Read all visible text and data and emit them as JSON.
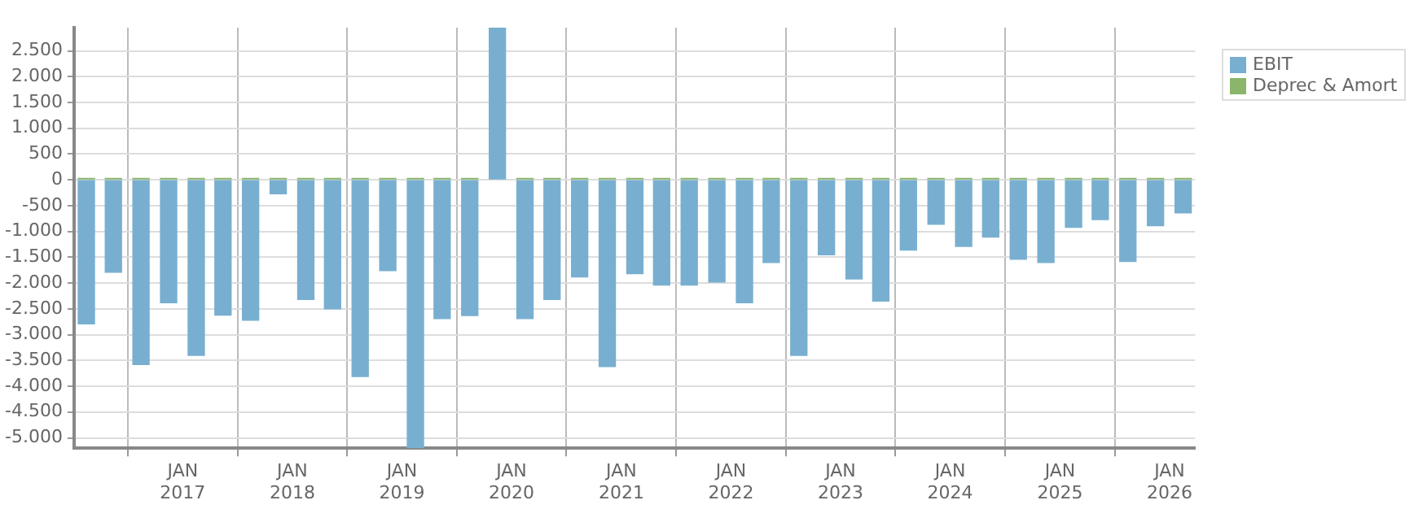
{
  "chart_data": {
    "type": "bar",
    "stacked": true,
    "x": [
      "2016-02-15",
      "2016-05-15",
      "2016-08-15",
      "2016-11-15",
      "2017-02-15",
      "2017-05-15",
      "2017-08-15",
      "2017-11-15",
      "2018-02-15",
      "2018-05-15",
      "2018-08-15",
      "2018-11-15",
      "2019-02-15",
      "2019-05-15",
      "2019-08-15",
      "2019-11-15",
      "2020-02-15",
      "2020-05-15",
      "2020-08-15",
      "2020-11-15",
      "2021-02-15",
      "2021-05-15",
      "2021-08-15",
      "2021-11-15",
      "2022-02-15",
      "2022-05-15",
      "2022-08-15",
      "2022-11-15",
      "2023-02-15",
      "2023-05-15",
      "2023-08-15",
      "2023-11-15",
      "2024-02-15",
      "2024-05-15",
      "2024-08-15",
      "2024-11-15",
      "2025-02-15",
      "2025-05-15",
      "2025-08-15",
      "2025-11-15",
      "2026-02-15"
    ],
    "series": [
      {
        "name": "EBIT",
        "color": "#78afd0",
        "values": [
          -2790,
          -1790,
          -3580,
          -2380,
          -3400,
          -2620,
          -2720,
          -270,
          -2320,
          -2500,
          -3810,
          -1760,
          -5200,
          -2690,
          -2630,
          2950,
          -2690,
          -2320,
          -1880,
          -3620,
          -1820,
          -2040,
          -2040,
          -1980,
          -2380,
          -1600,
          -3400,
          -1450,
          -1920,
          -2350,
          -1360,
          -860,
          -1290,
          -1110,
          -1540,
          -1600,
          -920,
          -770,
          -1580,
          -890,
          -640
        ]
      },
      {
        "name": "Deprec & Amort",
        "color": "#8ab56a",
        "values": [
          30,
          30,
          30,
          30,
          30,
          30,
          30,
          30,
          30,
          30,
          30,
          30,
          30,
          30,
          30,
          null,
          30,
          30,
          30,
          30,
          30,
          30,
          30,
          30,
          30,
          30,
          30,
          30,
          30,
          30,
          30,
          30,
          30,
          30,
          30,
          30,
          30,
          30,
          30,
          30,
          30
        ]
      }
    ],
    "xlim": [
      "2016-01-05",
      "2026-03-27"
    ],
    "xticks": [
      {
        "value": "2017-01-01",
        "label": "JAN 2017"
      },
      {
        "value": "2018-01-01",
        "label": "JAN 2018"
      },
      {
        "value": "2019-01-01",
        "label": "JAN 2019"
      },
      {
        "value": "2020-01-01",
        "label": "JAN 2020"
      },
      {
        "value": "2021-01-01",
        "label": "JAN 2021"
      },
      {
        "value": "2022-01-01",
        "label": "JAN 2022"
      },
      {
        "value": "2023-01-01",
        "label": "JAN 2023"
      },
      {
        "value": "2024-01-01",
        "label": "JAN 2024"
      },
      {
        "value": "2025-01-01",
        "label": "JAN 2025"
      },
      {
        "value": "2026-01-01",
        "label": "JAN 2026"
      }
    ],
    "ylim": [
      -5200,
      2950
    ],
    "yticks": [
      {
        "value": 2500,
        "label": "2.500"
      },
      {
        "value": 2000,
        "label": "2.000"
      },
      {
        "value": 1500,
        "label": "1.500"
      },
      {
        "value": 1000,
        "label": "1.000"
      },
      500,
      0,
      -500,
      {
        "value": -1000,
        "label": "-1.000"
      },
      {
        "value": -1500,
        "label": "-1.500"
      },
      {
        "value": -2000,
        "label": "-2.000"
      },
      {
        "value": -2500,
        "label": "-2.500"
      },
      {
        "value": -3000,
        "label": "-3.000"
      },
      {
        "value": -3500,
        "label": "-3.500"
      },
      {
        "value": -4000,
        "label": "-4.000"
      },
      {
        "value": -4500,
        "label": "-4.500"
      },
      {
        "value": -5000,
        "label": "-5.000"
      }
    ],
    "grid": true,
    "legend": "top right"
  }
}
